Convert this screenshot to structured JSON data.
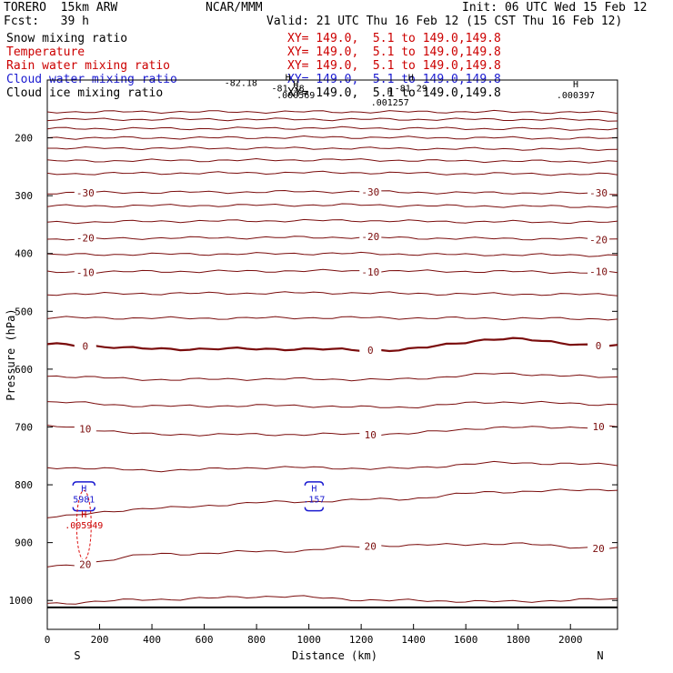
{
  "header": {
    "model": "TORERO  15km ARW",
    "center": "NCAR/MMM",
    "init": "Init: 06 UTC Wed 15 Feb 12",
    "fcst": "Fcst:   39 h",
    "valid": "Valid: 21 UTC Thu 16 Feb 12 (15 CST Thu 16 Feb 12)"
  },
  "legend": [
    {
      "label": "Snow mixing ratio",
      "xy": "XY= 149.0,  5.1 to 149.0,149.8",
      "color": "#000000"
    },
    {
      "label": "Temperature",
      "xy": "XY= 149.0,  5.1 to 149.0,149.8",
      "color": "#cc0000"
    },
    {
      "label": "Rain water mixing ratio",
      "xy": "XY= 149.0,  5.1 to 149.0,149.8",
      "color": "#cc0000"
    },
    {
      "label": "Cloud water mixing ratio",
      "xy": "XY= 149.0,  5.1 to 149.0,149.8",
      "color": "#1a1ad0"
    },
    {
      "label": "Cloud ice mixing ratio",
      "xy": "XY= 149.0,  5.1 to 149.0,149.8",
      "color": "#000000"
    }
  ],
  "chart_data": {
    "type": "contour",
    "xlabel": "Distance (km)",
    "ylabel": "Pressure (hPa)",
    "xlim": [
      0,
      2180
    ],
    "ylim": [
      1050,
      100
    ],
    "x_ticks": [
      0,
      200,
      400,
      600,
      800,
      1000,
      1200,
      1400,
      1600,
      1800,
      2000
    ],
    "y_ticks": [
      200,
      300,
      400,
      500,
      600,
      700,
      800,
      900,
      1000
    ],
    "x_end_labels": {
      "left": "S",
      "right": "N"
    },
    "temperature_contours": [
      {
        "level": "",
        "p": [
          155,
          155,
          155,
          155,
          156
        ]
      },
      {
        "level": "",
        "p": [
          168,
          168,
          168,
          168,
          169
        ]
      },
      {
        "level": "",
        "p": [
          184,
          184,
          183,
          184,
          185
        ]
      },
      {
        "level": "",
        "p": [
          200,
          200,
          199,
          200,
          201
        ]
      },
      {
        "level": "",
        "p": [
          218,
          218,
          218,
          219,
          220
        ]
      },
      {
        "level": "",
        "p": [
          240,
          239,
          238,
          240,
          241
        ]
      },
      {
        "level": "",
        "p": [
          262,
          261,
          260,
          262,
          263
        ]
      },
      {
        "level": "-30",
        "p": [
          295,
          294,
          293,
          295,
          296
        ]
      },
      {
        "level": "",
        "p": [
          318,
          317,
          316,
          318,
          319
        ]
      },
      {
        "level": "",
        "p": [
          346,
          344,
          343,
          345,
          346
        ]
      },
      {
        "level": "-20",
        "p": [
          375,
          373,
          372,
          374,
          375
        ]
      },
      {
        "level": "",
        "p": [
          402,
          401,
          400,
          402,
          403
        ]
      },
      {
        "level": "-10",
        "p": [
          432,
          431,
          430,
          431,
          433
        ]
      },
      {
        "level": "",
        "p": [
          470,
          469,
          468,
          470,
          471
        ]
      },
      {
        "level": "",
        "p": [
          511,
          512,
          511,
          512,
          513
        ]
      },
      {
        "level": "0",
        "p": [
          557,
          565,
          565,
          567,
          548,
          560
        ]
      },
      {
        "level": "",
        "p": [
          612,
          618,
          617,
          618,
          608,
          614
        ]
      },
      {
        "level": "",
        "p": [
          657,
          664,
          663,
          666,
          657,
          661
        ]
      },
      {
        "level": "10",
        "p": [
          699,
          713,
          713,
          712,
          701,
          700
        ]
      },
      {
        "level": "",
        "p": [
          770,
          775,
          770,
          772,
          762,
          765
        ]
      },
      {
        "level": "",
        "p": [
          855,
          840,
          830,
          825,
          812,
          808
        ]
      },
      {
        "level": "20",
        "p": [
          942,
          920,
          915,
          905,
          902,
          910
        ]
      },
      {
        "level": "",
        "p": [
          1005,
          998,
          993,
          1000,
          1002,
          998
        ]
      }
    ],
    "min_label": "-82.18",
    "extrema": [
      {
        "type": "H",
        "value": "-81.38",
        "x": 920,
        "p": 104,
        "color": "#000000"
      },
      {
        "type": "H",
        "value": "-81.29",
        "x": 1390,
        "p": 104,
        "color": "#000000"
      },
      {
        "type": "H",
        "value": ".000569",
        "x": 950,
        "p": 116,
        "color": "#000000"
      },
      {
        "type": "H",
        "value": ".001257",
        "x": 1310,
        "p": 128,
        "color": "#000000"
      },
      {
        "type": "H",
        "value": ".000397",
        "x": 2020,
        "p": 116,
        "color": "#000000"
      },
      {
        "type": "H",
        "value": "5981",
        "x": 140,
        "p": 815,
        "color": "#1a1ad0"
      },
      {
        "type": "H",
        "value": ".005949",
        "x": 140,
        "p": 860,
        "color": "#cc0000"
      },
      {
        "type": "H",
        "value": ".157",
        "x": 1020,
        "p": 815,
        "color": "#1a1ad0"
      }
    ]
  }
}
